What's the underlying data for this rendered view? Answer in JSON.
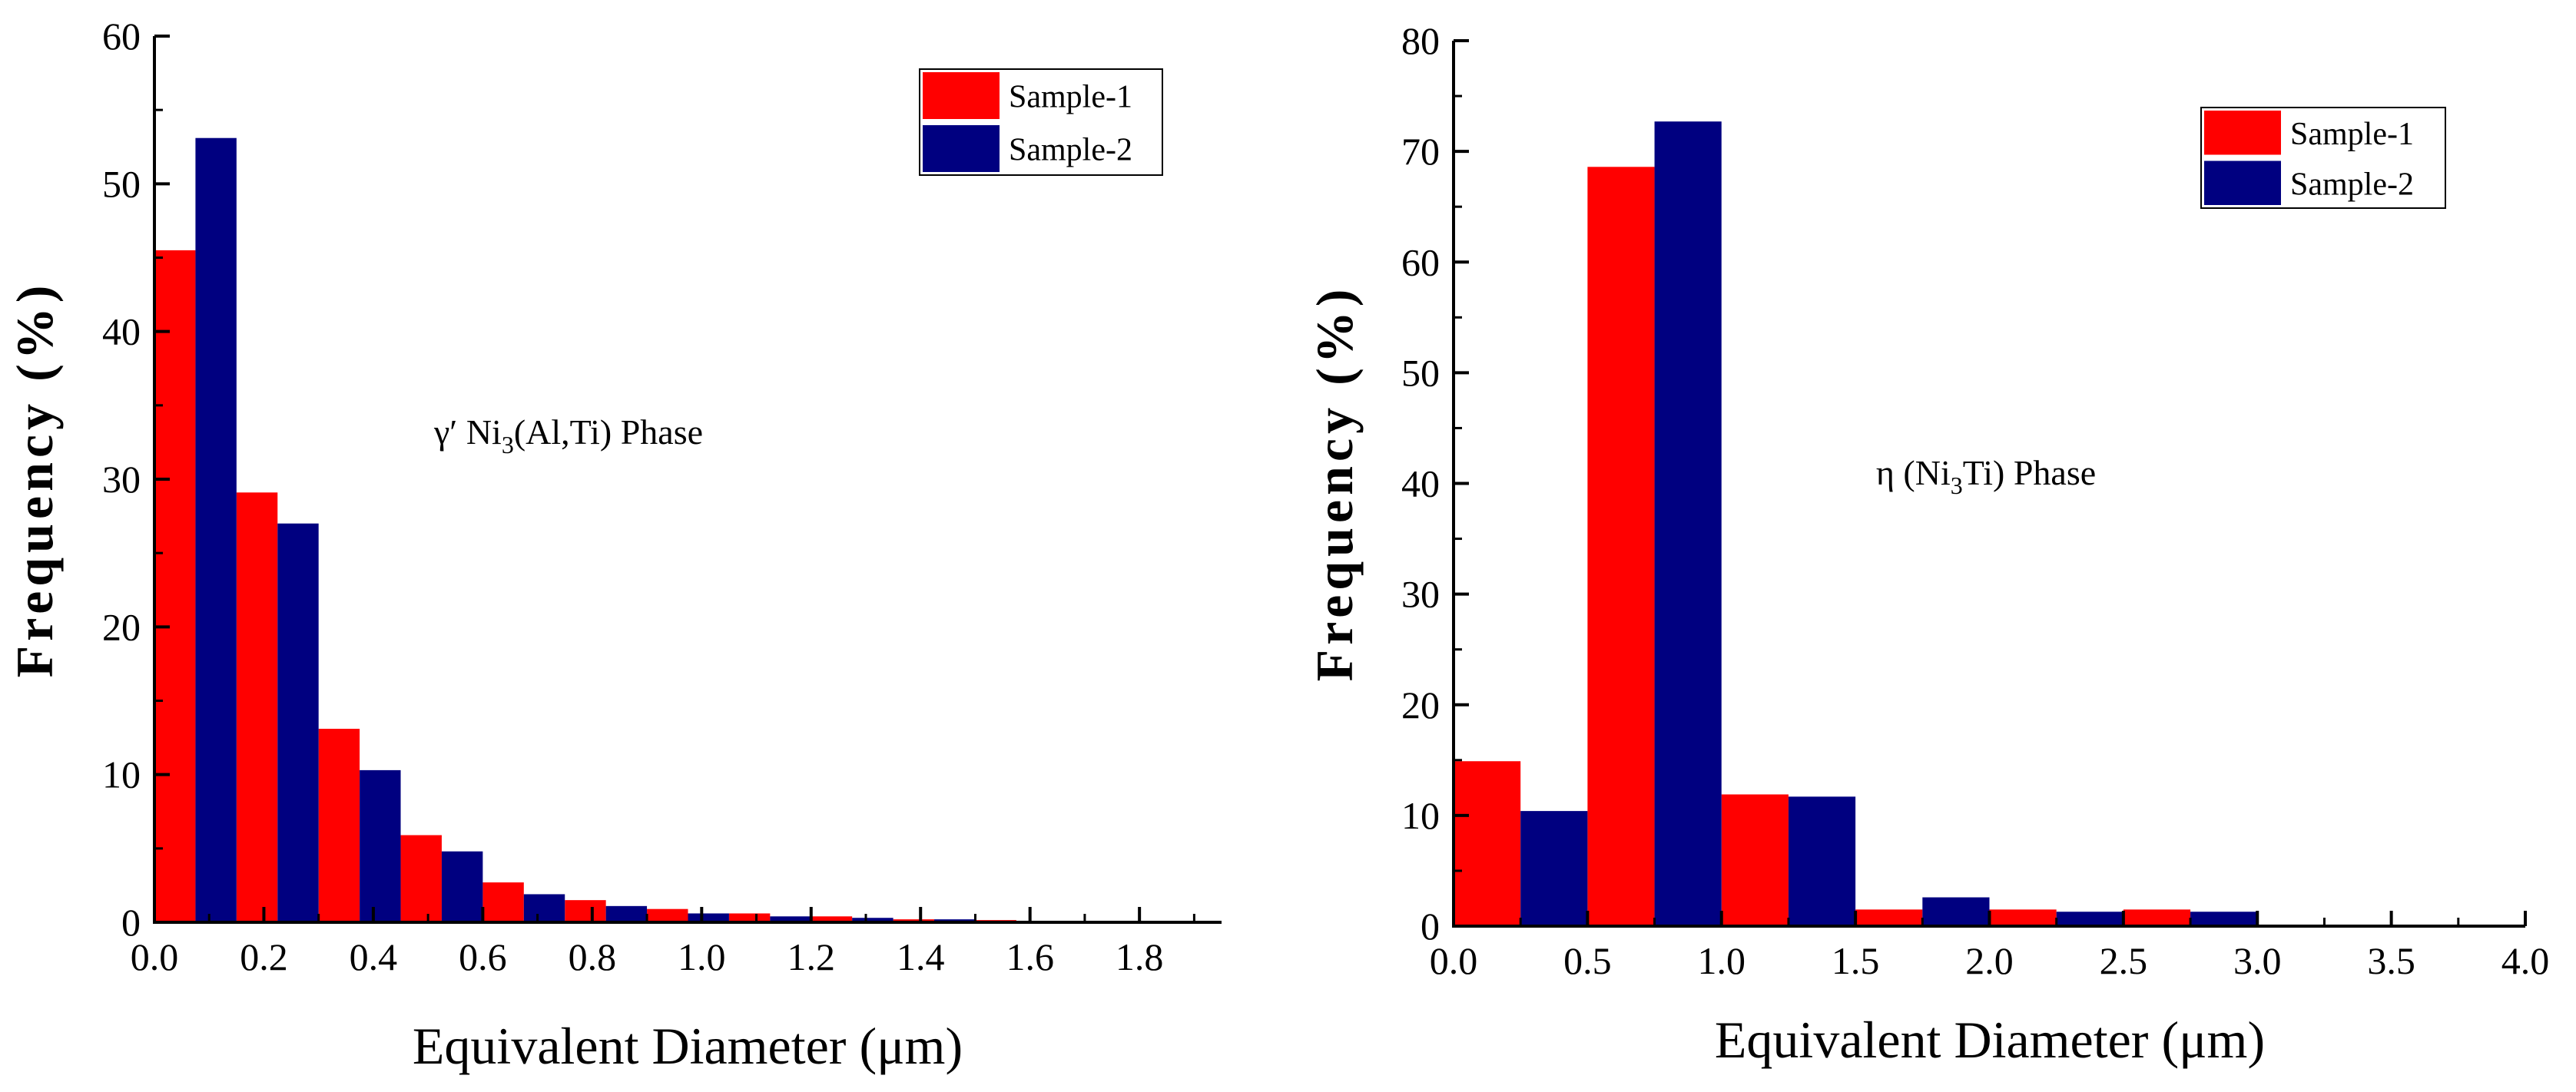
{
  "chart_data": [
    {
      "type": "bar",
      "annotation": {
        "pre": "γ′ Ni",
        "sub": "3",
        "post": "(Al,Ti) Phase"
      },
      "xlabel": "Equivalent Diameter (μm)",
      "ylabel": "Frequency (%)",
      "xlim": [
        0,
        1.95
      ],
      "ylim": [
        0,
        60
      ],
      "xticks": [
        0.0,
        0.2,
        0.4,
        0.6,
        0.8,
        1.0,
        1.2,
        1.4,
        1.6,
        1.8
      ],
      "xtick_labels": [
        "0.0",
        "0.2",
        "0.4",
        "0.6",
        "0.8",
        "1.0",
        "1.2",
        "1.4",
        "1.6",
        "1.8"
      ],
      "yticks": [
        0,
        10,
        20,
        30,
        40,
        50,
        60
      ],
      "ytick_labels": [
        "0",
        "10",
        "20",
        "30",
        "40",
        "50",
        "60"
      ],
      "bin_width": 0.15,
      "bin_starts": [
        0.0,
        0.15,
        0.3,
        0.45,
        0.6,
        0.75,
        0.9,
        1.05,
        1.2,
        1.35,
        1.5,
        1.65,
        1.8
      ],
      "series": [
        {
          "name": "Sample-1",
          "color": "#ff0000",
          "values": [
            45.5,
            29.1,
            13.1,
            5.9,
            2.7,
            1.5,
            0.9,
            0.6,
            0.4,
            0.2,
            0.15,
            0.1,
            0.05
          ]
        },
        {
          "name": "Sample-2",
          "color": "#000080",
          "values": [
            53.1,
            27.0,
            10.3,
            4.8,
            1.9,
            1.1,
            0.6,
            0.4,
            0.3,
            0.2,
            0.1,
            0.1,
            0.1
          ]
        }
      ],
      "grid": false,
      "legend_position": "top-right"
    },
    {
      "type": "bar",
      "annotation": {
        "pre": "η (Ni",
        "sub": "3",
        "post": "Ti) Phase"
      },
      "xlabel": "Equivalent Diameter (μm)",
      "ylabel": "Frequency (%)",
      "xlim": [
        0,
        4.0
      ],
      "ylim": [
        0,
        80
      ],
      "xticks": [
        0.0,
        0.5,
        1.0,
        1.5,
        2.0,
        2.5,
        3.0,
        3.5,
        4.0
      ],
      "xtick_labels": [
        "0.0",
        "0.5",
        "1.0",
        "1.5",
        "2.0",
        "2.5",
        "3.0",
        "3.5",
        "4.0"
      ],
      "yticks": [
        0,
        10,
        20,
        30,
        40,
        50,
        60,
        70,
        80
      ],
      "ytick_labels": [
        "0",
        "10",
        "20",
        "30",
        "40",
        "50",
        "60",
        "70",
        "80"
      ],
      "bin_width": 0.5,
      "bin_starts": [
        0.0,
        0.5,
        1.0,
        1.5,
        2.0,
        2.5
      ],
      "series": [
        {
          "name": "Sample-1",
          "color": "#ff0000",
          "values": [
            14.9,
            68.6,
            11.9,
            1.5,
            1.5,
            1.5
          ]
        },
        {
          "name": "Sample-2",
          "color": "#000080",
          "values": [
            10.4,
            72.7,
            11.7,
            2.6,
            1.3,
            1.3
          ]
        }
      ],
      "grid": false,
      "legend_position": "top-right"
    }
  ]
}
